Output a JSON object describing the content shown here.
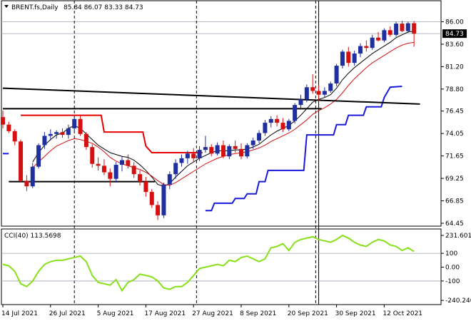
{
  "chart_data": [
    {
      "type": "candlestick",
      "title": "BRENT.fs,Daily",
      "ohlc_label": "85.84 86.07 83.33 84.73",
      "current_price_label": "84.73",
      "ylim": [
        64.45,
        86.8
      ],
      "yticks": [
        "86.00",
        "83.60",
        "81.20",
        "78.80",
        "76.45",
        "74.05",
        "71.65",
        "69.25",
        "66.85",
        "64.45"
      ],
      "xticks": [
        "14 Jul 2021",
        "26 Jul 2021",
        "5 Aug 2021",
        "17 Aug 2021",
        "27 Aug 2021",
        "8 Sep 2021",
        "20 Sep 2021",
        "30 Sep 2021",
        "12 Oct 2021"
      ],
      "xtick_index": [
        0,
        8,
        16,
        24,
        32,
        40,
        48,
        56,
        64
      ],
      "colors": {
        "up": "#1f2fa0",
        "down": "#d41010",
        "fast_ma": "#000000",
        "slow_ma": "#d41010",
        "support": "#1a1adb",
        "horizontal": "#000000",
        "resistance": "#e60000",
        "cci": "#88e01a"
      },
      "series": [
        {
          "type": "ohlc",
          "values": [
            [
              75.8,
              76.5,
              74.6,
              75.0
            ],
            [
              75.0,
              75.3,
              74.1,
              74.3
            ],
            [
              74.3,
              74.5,
              72.8,
              73.2
            ],
            [
              73.2,
              73.4,
              68.8,
              69.0
            ],
            [
              69.0,
              69.6,
              67.9,
              68.4
            ],
            [
              68.4,
              70.9,
              68.2,
              70.5
            ],
            [
              70.5,
              73.0,
              70.3,
              72.8
            ],
            [
              72.8,
              74.2,
              72.4,
              73.8
            ],
            [
              73.8,
              74.5,
              73.3,
              74.0
            ],
            [
              74.0,
              74.4,
              73.5,
              74.2
            ],
            [
              74.2,
              74.6,
              73.6,
              73.9
            ],
            [
              73.9,
              75.0,
              73.5,
              74.6
            ],
            [
              74.6,
              75.8,
              74.2,
              75.6
            ],
            [
              75.6,
              76.0,
              73.8,
              74.0
            ],
            [
              74.0,
              74.2,
              72.3,
              72.6
            ],
            [
              72.6,
              72.9,
              70.4,
              70.8
            ],
            [
              70.8,
              71.5,
              70.1,
              70.6
            ],
            [
              70.6,
              71.3,
              69.6,
              69.9
            ],
            [
              69.9,
              70.3,
              68.4,
              69.2
            ],
            [
              69.2,
              71.0,
              68.8,
              70.7
            ],
            [
              70.7,
              71.6,
              70.0,
              71.2
            ],
            [
              71.2,
              71.8,
              70.3,
              70.6
            ],
            [
              70.6,
              71.0,
              69.3,
              69.7
            ],
            [
              69.7,
              70.1,
              68.5,
              68.9
            ],
            [
              68.9,
              69.4,
              67.3,
              67.8
            ],
            [
              67.8,
              68.1,
              66.1,
              66.4
            ],
            [
              66.4,
              66.8,
              64.8,
              65.3
            ],
            [
              65.3,
              68.8,
              65.0,
              68.6
            ],
            [
              68.6,
              70.0,
              68.1,
              69.7
            ],
            [
              69.7,
              71.3,
              69.2,
              70.9
            ],
            [
              70.9,
              71.8,
              70.5,
              71.4
            ],
            [
              71.4,
              72.2,
              70.8,
              71.9
            ],
            [
              71.9,
              72.5,
              71.0,
              71.4
            ],
            [
              71.4,
              72.7,
              71.1,
              72.3
            ],
            [
              72.3,
              73.8,
              72.0,
              72.6
            ],
            [
              72.6,
              72.9,
              71.6,
              71.9
            ],
            [
              71.9,
              73.1,
              71.7,
              72.8
            ],
            [
              72.8,
              73.3,
              71.4,
              71.6
            ],
            [
              71.6,
              72.9,
              71.3,
              72.7
            ],
            [
              72.7,
              73.3,
              72.0,
              72.4
            ],
            [
              72.4,
              73.0,
              71.3,
              71.6
            ],
            [
              71.6,
              73.0,
              71.4,
              72.8
            ],
            [
              72.8,
              73.6,
              72.4,
              73.3
            ],
            [
              73.3,
              74.4,
              73.0,
              74.1
            ],
            [
              74.1,
              75.5,
              73.8,
              75.2
            ],
            [
              75.2,
              75.9,
              74.7,
              75.6
            ],
            [
              75.6,
              76.0,
              74.8,
              75.2
            ],
            [
              75.2,
              75.7,
              74.2,
              74.5
            ],
            [
              74.5,
              75.6,
              74.3,
              75.4
            ],
            [
              75.4,
              77.3,
              75.1,
              77.1
            ],
            [
              77.1,
              78.2,
              76.6,
              77.7
            ],
            [
              77.7,
              79.3,
              77.4,
              79.0
            ],
            [
              79.0,
              80.4,
              78.3,
              78.6
            ],
            [
              78.6,
              79.2,
              77.6,
              78.2
            ],
            [
              78.2,
              79.0,
              77.9,
              78.6
            ],
            [
              78.6,
              79.6,
              78.4,
              79.4
            ],
            [
              79.4,
              81.5,
              79.1,
              81.3
            ],
            [
              81.3,
              83.0,
              81.0,
              82.8
            ],
            [
              82.8,
              83.3,
              81.2,
              81.6
            ],
            [
              81.6,
              82.9,
              81.3,
              82.6
            ],
            [
              82.6,
              83.7,
              82.2,
              83.4
            ],
            [
              83.4,
              84.0,
              82.8,
              83.2
            ],
            [
              83.2,
              84.6,
              83.0,
              84.3
            ],
            [
              84.3,
              84.9,
              83.9,
              84.0
            ],
            [
              84.0,
              85.3,
              83.8,
              85.1
            ],
            [
              85.1,
              85.5,
              84.4,
              84.6
            ],
            [
              84.6,
              86.0,
              84.4,
              85.8
            ],
            [
              85.8,
              86.1,
              84.9,
              85.0
            ],
            [
              85.0,
              86.0,
              84.8,
              85.84
            ],
            [
              85.84,
              86.07,
              83.33,
              84.73
            ]
          ]
        },
        {
          "type": "line",
          "role": "fast_ma",
          "values": [
            null,
            null,
            null,
            null,
            null,
            71.0,
            72.0,
            72.8,
            73.4,
            73.9,
            74.1,
            74.6,
            74.9,
            74.6,
            74.0,
            73.4,
            72.8,
            72.4,
            72.0,
            71.8,
            71.6,
            71.5,
            71.2,
            70.7,
            70.1,
            69.4,
            68.6,
            68.4,
            68.7,
            69.4,
            70.0,
            70.6,
            71.0,
            71.4,
            71.7,
            72.0,
            72.2,
            72.2,
            72.2,
            72.3,
            72.3,
            72.4,
            72.6,
            72.9,
            73.4,
            73.9,
            74.3,
            74.6,
            74.9,
            75.4,
            76.0,
            76.7,
            77.4,
            77.7,
            77.9,
            78.2,
            78.9,
            79.8,
            80.5,
            81.1,
            81.6,
            82.1,
            82.6,
            83.0,
            83.4,
            83.8,
            84.3,
            84.6,
            84.9,
            85.0
          ]
        },
        {
          "type": "line",
          "role": "slow_ma",
          "values": [
            null,
            null,
            null,
            null,
            null,
            70.4,
            71.0,
            71.6,
            72.2,
            72.7,
            73.0,
            73.3,
            73.5,
            73.4,
            73.2,
            73.0,
            72.6,
            72.1,
            71.5,
            71.1,
            70.8,
            70.6,
            70.4,
            70.2,
            69.9,
            69.5,
            69.0,
            68.6,
            68.5,
            68.8,
            69.2,
            69.6,
            70.0,
            70.4,
            70.8,
            71.1,
            71.4,
            71.6,
            71.8,
            71.9,
            72.0,
            72.1,
            72.3,
            72.5,
            72.8,
            73.2,
            73.5,
            73.8,
            74.1,
            74.5,
            75.0,
            75.5,
            76.1,
            76.5,
            76.8,
            77.2,
            77.7,
            78.4,
            79.2,
            79.9,
            80.5,
            81.1,
            81.6,
            82.0,
            82.4,
            82.8,
            83.2,
            83.5,
            83.7,
            83.8
          ]
        },
        {
          "type": "line",
          "role": "support",
          "values": [
            71.9,
            71.9,
            null,
            null,
            null,
            null,
            null,
            null,
            null,
            null,
            null,
            null,
            null,
            null,
            null,
            null,
            null,
            null,
            null,
            null,
            null,
            null,
            null,
            null,
            null,
            null,
            null,
            null,
            null,
            null,
            null,
            null,
            null,
            null,
            null,
            null,
            null,
            null,
            null,
            null,
            null,
            null,
            null,
            null,
            null,
            null,
            null,
            null,
            null,
            null,
            null,
            null,
            null,
            null,
            null,
            null,
            null,
            null,
            null,
            null,
            null,
            null,
            null,
            null,
            null,
            null,
            null,
            null,
            null,
            null
          ]
        },
        {
          "type": "step",
          "role": "support",
          "points": [
            [
              34.0,
              65.8
            ],
            [
              35.0,
              65.8
            ],
            [
              35.5,
              66.6
            ],
            [
              38.5,
              66.6
            ],
            [
              39.0,
              67.1
            ],
            [
              40.5,
              67.1
            ],
            [
              41.0,
              67.6
            ],
            [
              42.5,
              67.6
            ],
            [
              43.0,
              68.9
            ],
            [
              44.0,
              68.9
            ],
            [
              44.5,
              70.1
            ],
            [
              50.5,
              70.1
            ],
            [
              51.0,
              73.9
            ],
            [
              55.5,
              73.9
            ],
            [
              56.0,
              75.0
            ],
            [
              57.5,
              75.0
            ],
            [
              58.0,
              76.0
            ],
            [
              60.5,
              76.0
            ],
            [
              61.0,
              76.9
            ],
            [
              63.5,
              76.9
            ],
            [
              64.0,
              77.9
            ],
            [
              65.0,
              79.0
            ],
            [
              67.0,
              79.1
            ]
          ]
        },
        {
          "type": "step",
          "role": "resistance",
          "points": [
            [
              3.0,
              76.0
            ],
            [
              16.5,
              76.0
            ],
            [
              17.0,
              74.2
            ],
            [
              23.5,
              74.2
            ],
            [
              24.0,
              72.7
            ],
            [
              25.0,
              72.0
            ],
            [
              33.5,
              72.0
            ]
          ]
        },
        {
          "type": "line",
          "role": "horizontal",
          "points": [
            [
              1.0,
              68.9
            ],
            [
              25.5,
              68.9
            ]
          ]
        },
        {
          "type": "line",
          "role": "horizontal",
          "points": [
            [
              0.0,
              78.9
            ],
            [
              70.0,
              77.2
            ]
          ]
        },
        {
          "type": "line",
          "role": "horizontal",
          "points": [
            [
              0.0,
              76.7
            ],
            [
              53.5,
              76.7
            ]
          ]
        }
      ],
      "vlines_dashed": [
        12,
        32.5,
        52.5
      ],
      "vlines_solid": [
        53
      ]
    },
    {
      "type": "line",
      "title": "CCI(40) 113.5698",
      "ylim": [
        -255,
        245
      ],
      "yticks": [
        "231.601",
        "100",
        "0.00",
        "-100",
        "-240.240"
      ],
      "levels": [
        100,
        -100
      ],
      "series": [
        {
          "role": "cci",
          "values": [
            20,
            10,
            -30,
            -120,
            -140,
            -100,
            -30,
            20,
            40,
            50,
            50,
            60,
            70,
            80,
            40,
            -60,
            -110,
            -120,
            -130,
            -90,
            -170,
            -110,
            -90,
            -50,
            -60,
            -70,
            -100,
            -150,
            -160,
            -140,
            -140,
            -110,
            -60,
            -10,
            0,
            10,
            20,
            10,
            50,
            40,
            70,
            80,
            60,
            40,
            60,
            140,
            150,
            170,
            120,
            180,
            200,
            210,
            220,
            200,
            190,
            180,
            200,
            230,
            210,
            180,
            160,
            150,
            180,
            200,
            190,
            160,
            150,
            120,
            140,
            113.57
          ]
        }
      ]
    }
  ]
}
